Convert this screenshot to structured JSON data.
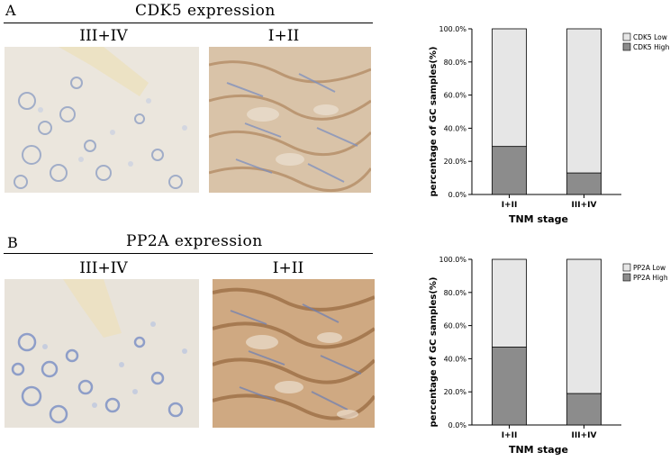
{
  "panels": [
    {
      "letter": "A",
      "title": "CDK5 expression",
      "image_labels": [
        "III+IV",
        "I+II"
      ]
    },
    {
      "letter": "B",
      "title": "PP2A expression",
      "image_labels": [
        "III+IV",
        "I+II"
      ]
    }
  ],
  "chart_data": [
    {
      "type": "bar",
      "stacked": true,
      "categories": [
        "I+II",
        "III+IV"
      ],
      "series": [
        {
          "name": "CDK5 High",
          "values": [
            29,
            13
          ],
          "color": "#8c8c8c"
        },
        {
          "name": "CDK5 Low",
          "values": [
            71,
            87
          ],
          "color": "#e6e6e6"
        }
      ],
      "xlabel": "TNM stage",
      "ylabel": "percentage of GC samples(%)",
      "ylim": [
        0,
        100
      ],
      "yticks": [
        "0.0%",
        "20.0%",
        "40.0%",
        "60.0%",
        "80.0%",
        "100.0%"
      ],
      "legend": [
        "CDK5 Low",
        "CDK5 High"
      ],
      "legend_position": "top-right",
      "grid": false
    },
    {
      "type": "bar",
      "stacked": true,
      "categories": [
        "I+II",
        "III+IV"
      ],
      "series": [
        {
          "name": "PP2A High",
          "values": [
            47,
            19
          ],
          "color": "#8c8c8c"
        },
        {
          "name": "PP2A Low",
          "values": [
            53,
            81
          ],
          "color": "#e6e6e6"
        }
      ],
      "xlabel": "TNM stage",
      "ylabel": "percentage of GC samples(%)",
      "ylim": [
        0,
        100
      ],
      "yticks": [
        "0.0%",
        "20.0%",
        "40.0%",
        "60.0%",
        "80.0%",
        "100.0%"
      ],
      "legend": [
        "PP2A Low",
        "PP2A High"
      ],
      "legend_position": "top-right",
      "grid": false
    }
  ]
}
